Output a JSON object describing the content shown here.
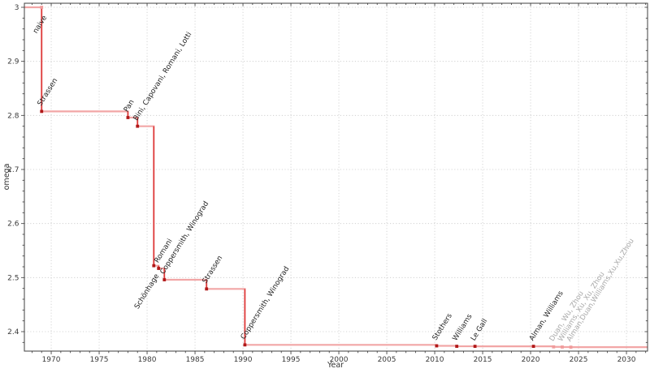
{
  "chart_data": {
    "type": "line",
    "step": "post",
    "title": "",
    "xlabel": "Year",
    "ylabel": "omega",
    "xlim": [
      1967.2,
      2032.2
    ],
    "ylim": [
      2.364,
      3.0075
    ],
    "grid": "dotted-major",
    "legend": "none",
    "x_ticks_major": [
      1970,
      1975,
      1980,
      1985,
      1990,
      1995,
      2000,
      2005,
      2010,
      2015,
      2020,
      2025,
      2030
    ],
    "x_tick_labels": [
      "1970",
      "1975",
      "1980",
      "1985",
      "1990",
      "1995",
      "2000",
      "2005",
      "2010",
      "2015",
      "2020",
      "2025",
      "2030"
    ],
    "x_minor_step": 1,
    "y_ticks_major": [
      2.4,
      2.5,
      2.6,
      2.7,
      2.8,
      2.9,
      3.0
    ],
    "y_tick_labels": [
      "2.4",
      "2.5",
      "2.6",
      "2.7",
      "2.8",
      "2.9",
      "3"
    ],
    "y_minor_step": 0.02,
    "line_start": {
      "x": 1967.2,
      "omega": 3.0
    },
    "line_end_x": 2032.2,
    "points": [
      {
        "x": 1969.0,
        "omega": 3.0,
        "label": "naive",
        "marker": "pale",
        "label_color": "black",
        "label_anchor": "end"
      },
      {
        "x": 1969.0,
        "omega": 2.8074,
        "label": "Strassen",
        "marker": "dark",
        "label_color": "black",
        "label_anchor": "start"
      },
      {
        "x": 1978.0,
        "omega": 2.796,
        "label": "Pan",
        "marker": "dark",
        "label_color": "black",
        "label_anchor": "start"
      },
      {
        "x": 1979.0,
        "omega": 2.78,
        "label": "Bini, Capovani, Romani, Lotti",
        "marker": "dark",
        "label_color": "black",
        "label_anchor": "start"
      },
      {
        "x": 1980.7,
        "omega": 2.522,
        "label": "Schönhage",
        "marker": "dark",
        "label_color": "black",
        "label_anchor": "end"
      },
      {
        "x": 1981.2,
        "omega": 2.517,
        "label": "Romani",
        "marker": "dark",
        "label_color": "black",
        "label_anchor": "start"
      },
      {
        "x": 1981.8,
        "omega": 2.496,
        "label": "Coppersmith, Winograd",
        "marker": "dark",
        "label_color": "black",
        "label_anchor": "start"
      },
      {
        "x": 1986.2,
        "omega": 2.479,
        "label": "Strassen",
        "marker": "dark",
        "label_color": "black",
        "label_anchor": "start"
      },
      {
        "x": 1990.2,
        "omega": 2.3755,
        "label": "Coppersmith, Winograd",
        "marker": "dark",
        "label_color": "black",
        "label_anchor": "start"
      },
      {
        "x": 2010.2,
        "omega": 2.3737,
        "label": "Stothers",
        "marker": "dark",
        "label_color": "black",
        "label_anchor": "start"
      },
      {
        "x": 2012.3,
        "omega": 2.3729,
        "label": "Williams",
        "marker": "dark",
        "label_color": "black",
        "label_anchor": "start"
      },
      {
        "x": 2014.2,
        "omega": 2.3728639,
        "label": "Le Gall",
        "marker": "dark",
        "label_color": "black",
        "label_anchor": "start"
      },
      {
        "x": 2020.3,
        "omega": 2.3728596,
        "label": "Alman, Williams",
        "marker": "dark",
        "label_color": "black",
        "label_anchor": "start"
      },
      {
        "x": 2022.4,
        "omega": 2.371866,
        "label": "Duan, Wu, Zhou",
        "marker": "pale",
        "label_color": "gray",
        "label_anchor": "start"
      },
      {
        "x": 2023.3,
        "omega": 2.371552,
        "label": "Williams, Xu, Xu, Zhou",
        "marker": "pale",
        "label_color": "gray",
        "label_anchor": "start"
      },
      {
        "x": 2024.2,
        "omega": 2.371339,
        "label": "Alman,Duan,Williams,Xu,Xu,Zhou",
        "marker": "pale",
        "label_color": "gray",
        "label_anchor": "start"
      }
    ],
    "colors": {
      "step_line": "#f2a6a6",
      "drop_line": "#dd3a3a",
      "marker_dark": "#b01818",
      "marker_pale": "#f09c9c",
      "label_black": "#1f1f1f",
      "label_gray": "#a8a8a8",
      "grid": "#c9c9c9",
      "axis_frame": "#3f3f3f",
      "tick": "#4a4a4a"
    }
  }
}
